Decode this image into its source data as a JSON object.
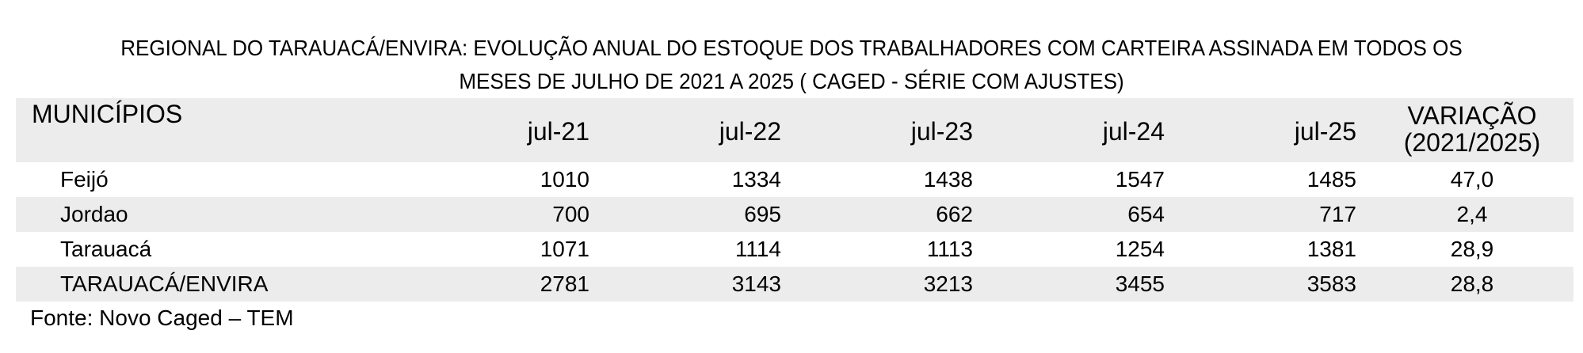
{
  "title_lines": [
    "REGIONAL DO TARAUACÁ/ENVIRA: EVOLUÇÃO ANUAL DO ESTOQUE DOS TRABALHADORES COM CARTEIRA ASSINADA  EM TODOS OS",
    "MESES DE JULHO DE 2021 A 2025 ( CAGED - SÉRIE COM AJUSTES)"
  ],
  "header": {
    "municipios": "MUNICÍPIOS",
    "variacao_line1": "VARIAÇÃO",
    "variacao_line2": "(2021/2025)"
  },
  "source": "Fonte: Novo Caged – TEM",
  "chart_data": {
    "type": "table",
    "title": "REGIONAL DO TARAUACÁ/ENVIRA: EVOLUÇÃO ANUAL DO ESTOQUE DOS TRABALHADORES COM CARTEIRA ASSINADA  EM TODOS OS MESES DE JULHO DE 2021 A 2025 ( CAGED - SÉRIE COM AJUSTES)",
    "columns": [
      "jul-21",
      "jul-22",
      "jul-23",
      "jul-24",
      "jul-25"
    ],
    "rows": [
      {
        "name": "Feijó",
        "values": [
          "1010",
          "1334",
          "1438",
          "1547",
          "1485"
        ],
        "variacao": "47,0"
      },
      {
        "name": "Jordao",
        "values": [
          "700",
          "695",
          "662",
          "654",
          "717"
        ],
        "variacao": "2,4"
      },
      {
        "name": "Tarauacá",
        "values": [
          "1071",
          "1114",
          "1113",
          "1254",
          "1381"
        ],
        "variacao": "28,9"
      },
      {
        "name": "TARAUACÁ/ENVIRA",
        "values": [
          "2781",
          "3143",
          "3213",
          "3455",
          "3583"
        ],
        "variacao": "28,8"
      }
    ]
  }
}
